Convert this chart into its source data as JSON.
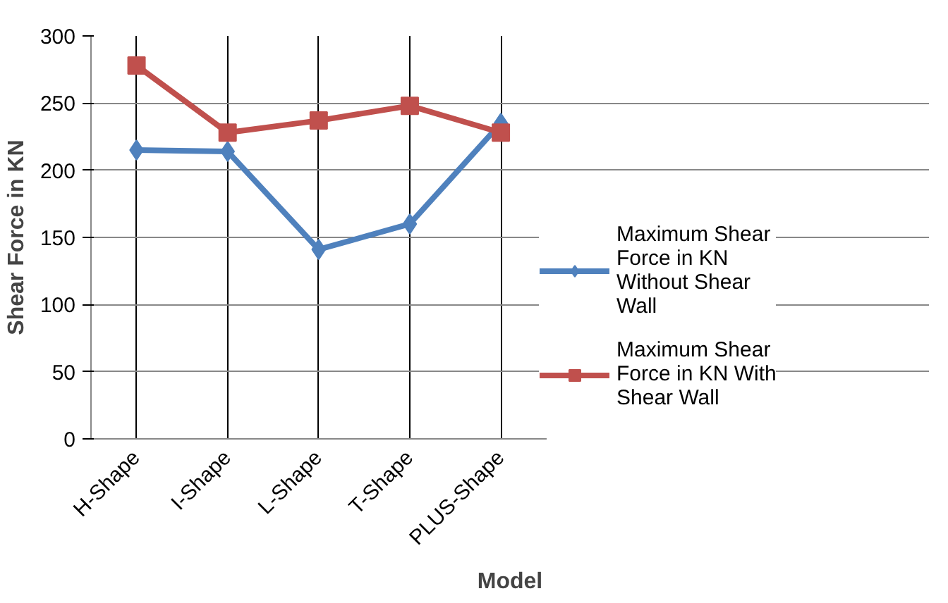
{
  "chart_data": {
    "type": "line",
    "xlabel": "Model",
    "ylabel": "Shear Force in KN",
    "categories": [
      "H-Shape",
      "I-Shape",
      "L-Shape",
      "T-Shape",
      "PLUS-Shape"
    ],
    "series": [
      {
        "name": "Maximum Shear Force in KN Without Shear Wall",
        "color": "#4f81bd",
        "marker": "diamond",
        "values": [
          215,
          214,
          141,
          160,
          235
        ]
      },
      {
        "name": "Maximum Shear Force in KN With Shear Wall",
        "color": "#c0504d",
        "marker": "square",
        "values": [
          278,
          228,
          237,
          248,
          228
        ]
      }
    ],
    "ylim": [
      0,
      300
    ],
    "yticks": [
      0,
      50,
      100,
      150,
      200,
      250,
      300
    ],
    "grid": true,
    "legend": "right",
    "line_style": "solid"
  }
}
